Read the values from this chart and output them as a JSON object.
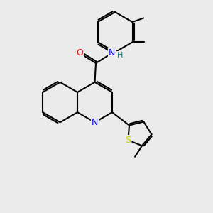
{
  "bg_color": "#ebebeb",
  "bond_color": "#000000",
  "bond_width": 1.5,
  "atom_colors": {
    "N": "#0000ff",
    "O": "#ff0000",
    "S": "#cccc00",
    "H": "#008080"
  },
  "font_size": 9,
  "fig_size": [
    3.0,
    3.0
  ],
  "dpi": 100
}
